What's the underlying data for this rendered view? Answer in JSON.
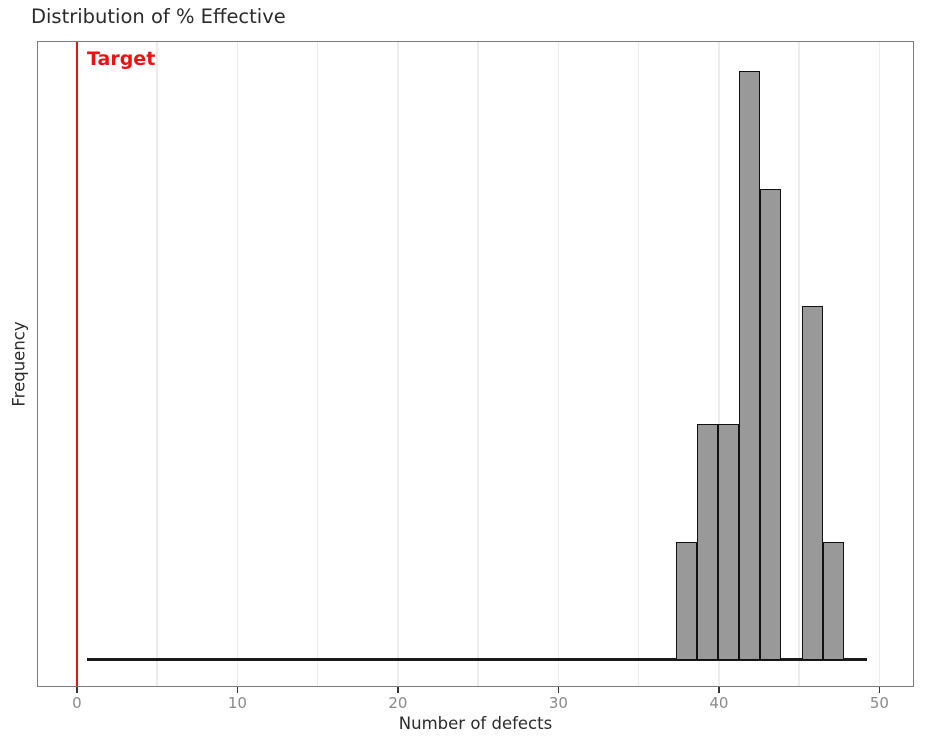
{
  "title": "Distribution of % Effective",
  "x_axis": {
    "label": "Number of defects"
  },
  "y_axis": {
    "label": "Frequency"
  },
  "chart_data": {
    "type": "bar",
    "subtype": "histogram",
    "title": "Distribution of % Effective",
    "xlabel": "Number of defects",
    "ylabel": "Frequency",
    "xlim": [
      -2.5,
      52.2
    ],
    "x_ticks": [
      0,
      10,
      20,
      30,
      40,
      50
    ],
    "x_gridlines": [
      0,
      5,
      10,
      15,
      20,
      25,
      30,
      35,
      40,
      45,
      50
    ],
    "y_tick_labels_visible": false,
    "grid": "vertical-only",
    "legend": false,
    "bins": [
      {
        "x_start": 37.3,
        "x_end": 38.61,
        "count": 1
      },
      {
        "x_start": 38.61,
        "x_end": 39.92,
        "count": 2
      },
      {
        "x_start": 39.92,
        "x_end": 41.23,
        "count": 2
      },
      {
        "x_start": 41.23,
        "x_end": 42.54,
        "count": 5
      },
      {
        "x_start": 42.54,
        "x_end": 43.85,
        "count": 4
      },
      {
        "x_start": 43.85,
        "x_end": 45.16,
        "count": 0
      },
      {
        "x_start": 45.16,
        "x_end": 46.47,
        "count": 3
      },
      {
        "x_start": 46.47,
        "x_end": 47.78,
        "count": 1
      }
    ],
    "zero_baseline_extent": [
      0.6,
      49.2
    ],
    "target_line": {
      "x": 0,
      "label": "Target",
      "color": "#ee1111"
    },
    "colors": {
      "bar_fill": "#999999",
      "bar_edge": "#111111",
      "gridline": "#ececec",
      "baseline": "#1a1a1a",
      "plot_border": "#7c7c7c",
      "tick_label": "#8a8a8a",
      "axis_label": "#2b2b2b",
      "title": "#2b2b2b"
    }
  }
}
